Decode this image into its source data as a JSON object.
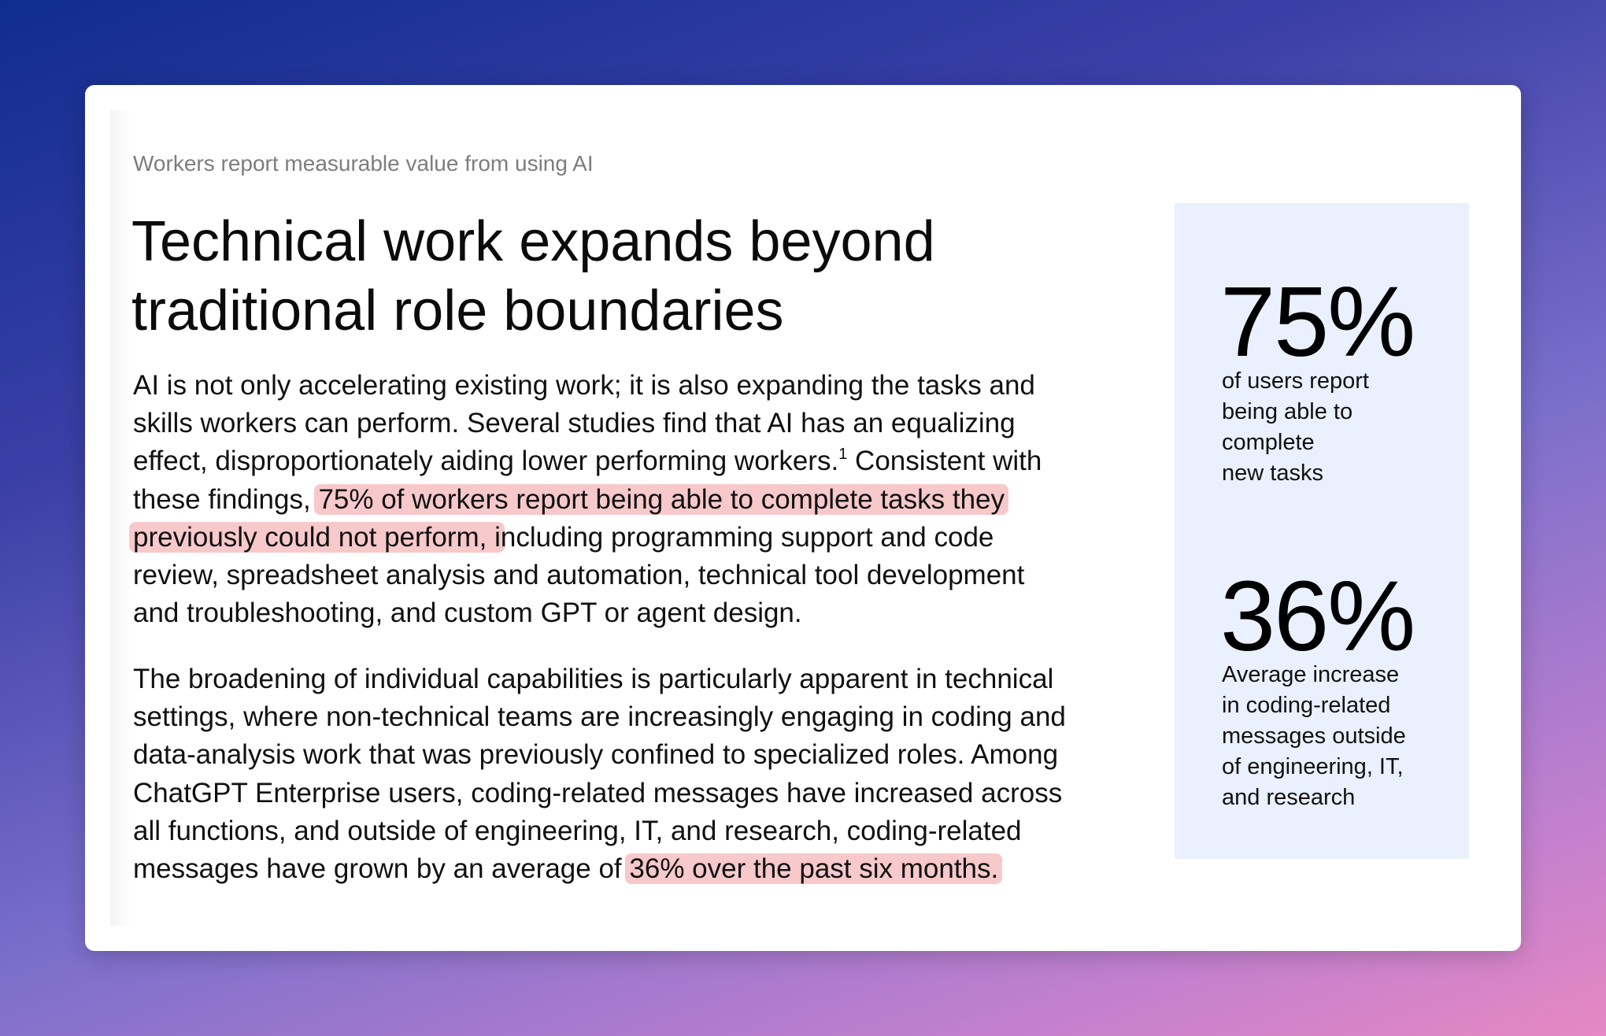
{
  "kicker": "Workers report measurable value from using AI",
  "title": [
    "Technical work expands beyond",
    "traditional role boundaries"
  ],
  "paragraphs": [
    [
      [
        {
          "t": "AI is not only accelerating existing work; it is also expanding the tasks and"
        }
      ],
      [
        {
          "t": "skills workers can perform. Several studies find that AI has an equalizing"
        }
      ],
      [
        {
          "t": "effect, disproportionately aiding lower performing workers."
        },
        {
          "sup": "1"
        },
        {
          "t": " Consistent with"
        }
      ],
      [
        {
          "t": "these findings, "
        },
        {
          "h": "75% of workers report being able to complete tasks they"
        }
      ],
      [
        {
          "h": "previously could not perform, i"
        },
        {
          "t": "ncluding programming support and code"
        }
      ],
      [
        {
          "t": "review, spreadsheet analysis and automation, technical tool development"
        }
      ],
      [
        {
          "t": "and troubleshooting, and custom GPT or agent design."
        }
      ]
    ],
    [
      [
        {
          "t": "The broadening of individual capabilities is particularly apparent in technical"
        }
      ],
      [
        {
          "t": "settings, where non-technical teams are increasingly engaging in coding and"
        }
      ],
      [
        {
          "t": "data-analysis work that was previously confined to specialized roles. Among"
        }
      ],
      [
        {
          "t": "ChatGPT Enterprise users, coding-related messages have increased across"
        }
      ],
      [
        {
          "t": "all functions, and outside of engineering, IT, and research, coding-related"
        }
      ],
      [
        {
          "t": "messages have grown by an average of "
        },
        {
          "h": "36% over the past six months."
        }
      ]
    ]
  ],
  "stats": [
    {
      "value": "75%",
      "label": [
        "of users report",
        "being able to",
        "complete",
        "new tasks"
      ]
    },
    {
      "value": "36%",
      "label": [
        "Average increase",
        "in coding-related",
        "messages outside",
        "of engineering, IT,",
        "and research"
      ]
    }
  ],
  "colors": {
    "highlight": "#f7c9cb",
    "stat_panel": "#eaf0fd",
    "kicker": "#7d7d7d"
  }
}
